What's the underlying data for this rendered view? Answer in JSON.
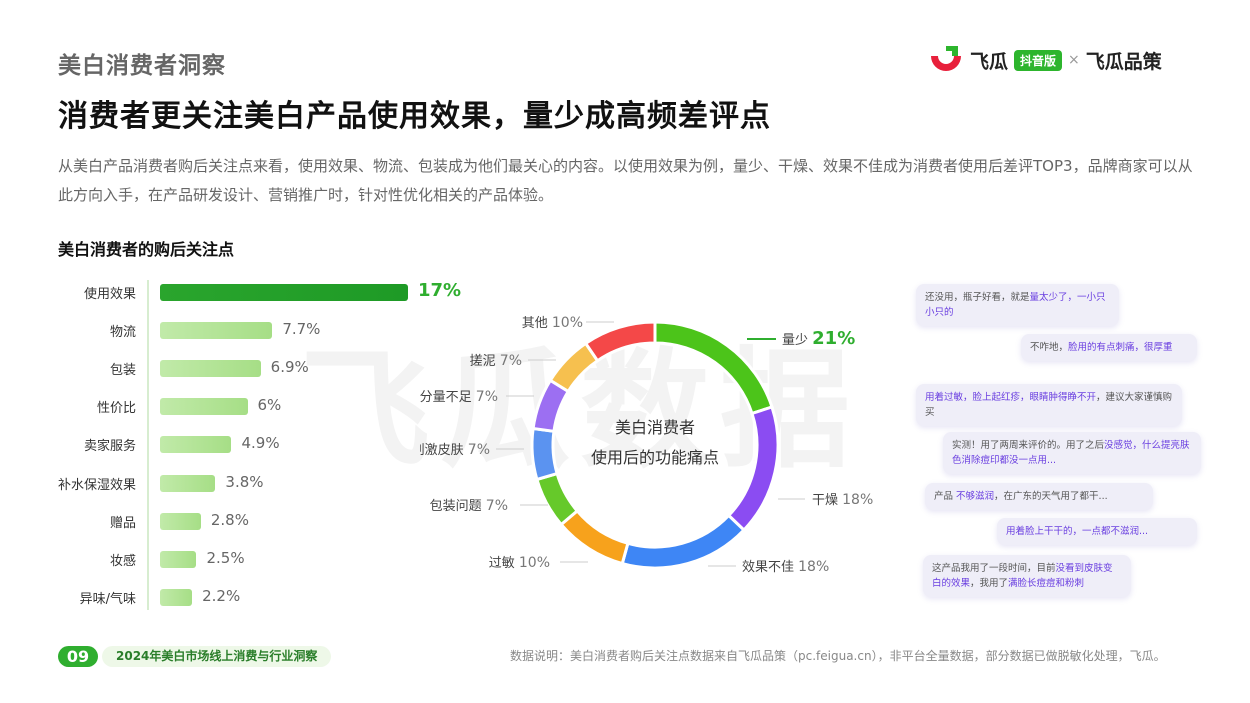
{
  "header": {
    "section": "美白消费者洞察",
    "headline": "消费者更关注美白产品使用效果，量少成高频差评点",
    "paragraph": "从美白产品消费者购后关注点来看，使用效果、物流、包装成为他们最关心的内容。以使用效果为例，量少、干燥、效果不佳成为消费者使用后差评TOP3，品牌商家可以从此方向入手，在产品研发设计、营销推广时，针对性优化相关的产品体验。"
  },
  "logo": {
    "brand": "飞瓜",
    "badge": "抖音版",
    "times": "×",
    "partner": "飞瓜品策",
    "colors": {
      "red": "#e8203b",
      "green": "#2db52d"
    }
  },
  "watermark": "飞瓜数据",
  "chart_data": [
    {
      "type": "bar",
      "orientation": "horizontal",
      "title": "美白消费者的购后关注点",
      "categories": [
        "使用效果",
        "物流",
        "包装",
        "性价比",
        "卖家服务",
        "补水保湿效果",
        "赠品",
        "妆感",
        "异味/气味"
      ],
      "values": [
        17,
        7.7,
        6.9,
        6,
        4.9,
        3.8,
        2.8,
        2.5,
        2.2
      ],
      "value_labels": [
        "17%",
        "7.7%",
        "6.9%",
        "6%",
        "4.9%",
        "3.8%",
        "2.8%",
        "2.5%",
        "2.2%"
      ],
      "unit": "%",
      "colors": {
        "highlight": "#229e29",
        "normal": "#b5e49a"
      }
    },
    {
      "type": "pie",
      "style": "donut",
      "center_text": [
        "美白消费者",
        "使用后的功能痛点"
      ],
      "categories": [
        "量少",
        "干燥",
        "效果不佳",
        "过敏",
        "包装问题",
        "刺激皮肤",
        "分量不足",
        "搓泥",
        "其他"
      ],
      "values": [
        21,
        18,
        18,
        10,
        7,
        7,
        7,
        7,
        10
      ],
      "value_labels": [
        "21%",
        "18%",
        "18%",
        "10%",
        "7%",
        "7%",
        "7%",
        "7%",
        "10%"
      ],
      "colors": [
        "#4cc41a",
        "#8b4cf2",
        "#3e86f5",
        "#f7a21c",
        "#66c92a",
        "#5b93f0",
        "#9c6ff2",
        "#f6c04f",
        "#f44848"
      ]
    }
  ],
  "reviews": [
    {
      "pre": "还没用，瓶子好看，就是",
      "hl": "量太少了，一小只小只的",
      "post": ""
    },
    {
      "pre": "不咋地，",
      "hl": "脸用的有点刺痛，很厚重",
      "post": ""
    },
    {
      "pre": "",
      "hl": "用着过敏，脸上起红疹，眼睛肿得睁不开",
      "post": "，建议大家谨慎购买"
    },
    {
      "pre": "实测！用了两周来评价的。用了之后",
      "hl": "没感觉，什么提亮肤色消除痘印都没一点用...",
      "post": ""
    },
    {
      "pre": "产品 ",
      "hl": "不够滋润",
      "post": "，在广东的天气用了都干..."
    },
    {
      "pre": "",
      "hl": "用着脸上干干的，一点都不滋润...",
      "post": ""
    },
    {
      "pre": "这产品我用了一段时间，目前",
      "hl": "没看到皮肤变白的效果",
      "post": "，我用了",
      "hl2": "满脸长痘痘和粉刺"
    }
  ],
  "footer": {
    "page": "09",
    "report": "2024年美白市场线上消费与行业洞察",
    "note": "数据说明：美白消费者购后关注点数据来自飞瓜品策（pc.feigua.cn），非平台全量数据，部分数据已做脱敏化处理，飞瓜。"
  }
}
